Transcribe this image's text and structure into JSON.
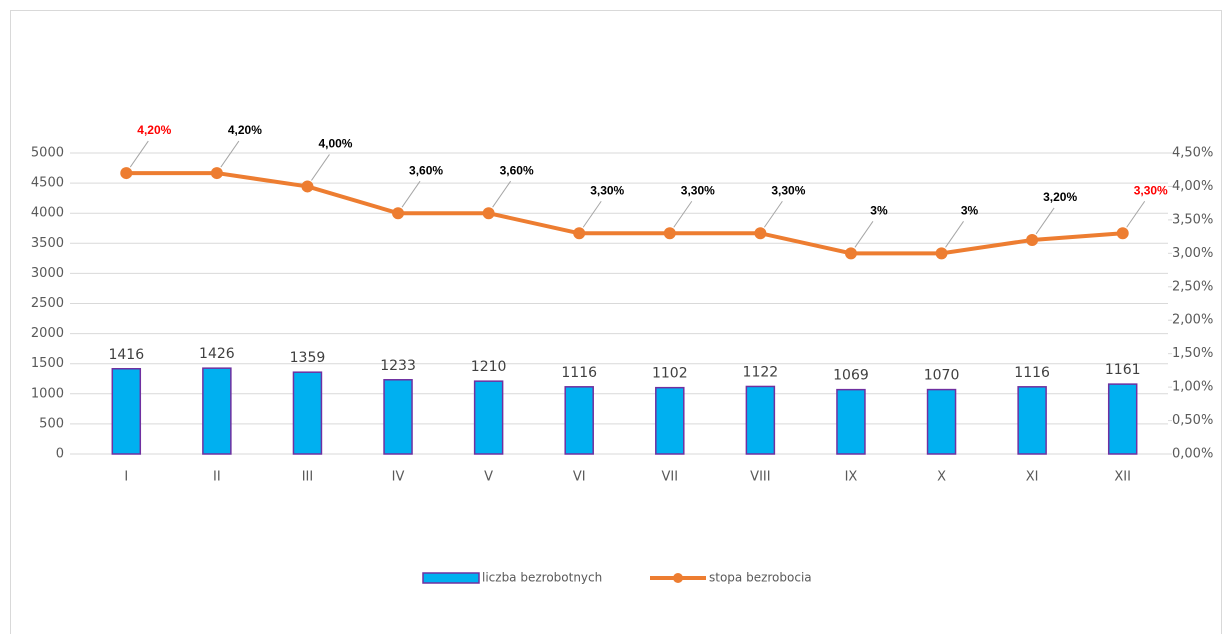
{
  "chart_data": {
    "type": "bar_line",
    "categories": [
      "I",
      "II",
      "III",
      "IV",
      "V",
      "VI",
      "VII",
      "VIII",
      "IX",
      "X",
      "XI",
      "XII"
    ],
    "series": [
      {
        "name": "liczba bezrobotnych",
        "type": "bar",
        "color": "#00b0f0",
        "stroke": "#7030a0",
        "values": [
          1416,
          1426,
          1359,
          1233,
          1210,
          1116,
          1102,
          1122,
          1069,
          1070,
          1116,
          1161
        ]
      },
      {
        "name": "stopa bezrobocia",
        "type": "line",
        "axis": "y2",
        "color": "#ed7d31",
        "values": [
          4.2,
          4.2,
          4.0,
          3.6,
          3.6,
          3.3,
          3.3,
          3.3,
          3.0,
          3.0,
          3.2,
          3.3
        ],
        "value_labels": [
          "4,20%",
          "4,20%",
          "4,00%",
          "3,60%",
          "3,60%",
          "3,30%",
          "3,30%",
          "3,30%",
          "3%",
          "3%",
          "3,20%",
          "3,30%"
        ],
        "value_label_colors": [
          "#ff0000",
          "#000000",
          "#000000",
          "#000000",
          "#000000",
          "#000000",
          "#000000",
          "#000000",
          "#000000",
          "#000000",
          "#000000",
          "#ff0000"
        ]
      }
    ],
    "ylim": [
      0,
      5000
    ],
    "yticks": [
      0,
      500,
      1000,
      1500,
      2000,
      2500,
      3000,
      3500,
      4000,
      4500,
      5000
    ],
    "y2lim": [
      0,
      4.5
    ],
    "y2ticks": [
      {
        "value": 0,
        "label": "0,00%"
      },
      {
        "value": 0.5,
        "label": "0,50%"
      },
      {
        "value": 1,
        "label": "1,00%"
      },
      {
        "value": 1.5,
        "label": "1,50%"
      },
      {
        "value": 2,
        "label": "2,00%"
      },
      {
        "value": 2.5,
        "label": "2,50%"
      },
      {
        "value": 3,
        "label": "3,00%"
      },
      {
        "value": 3.5,
        "label": "3,50%"
      },
      {
        "value": 4,
        "label": "4,00%"
      },
      {
        "value": 4.5,
        "label": "4,50%"
      }
    ],
    "grid": true,
    "legend": "bottom"
  }
}
